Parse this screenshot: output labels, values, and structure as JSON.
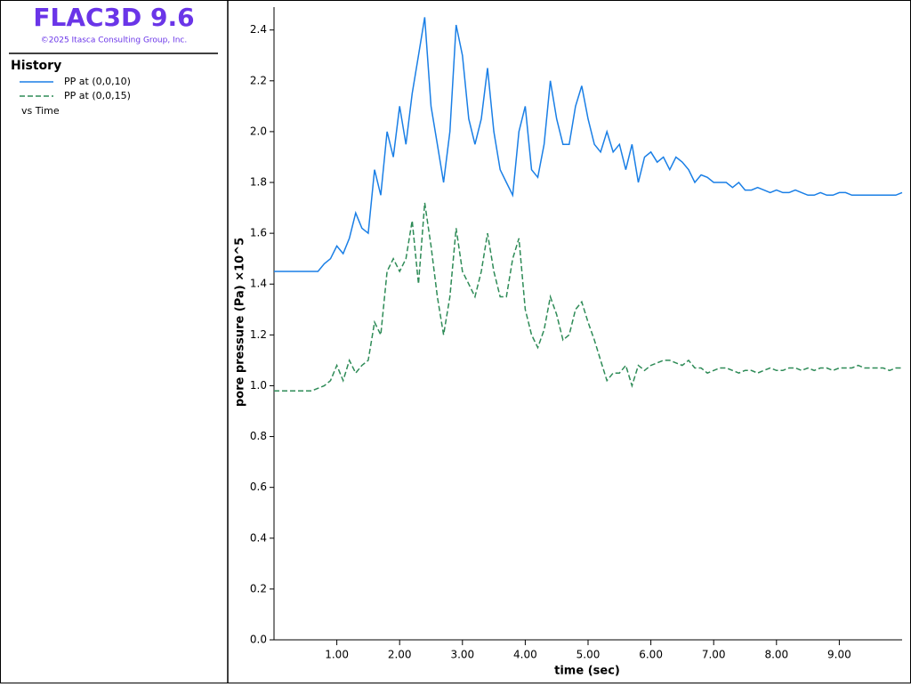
{
  "chart_data": {
    "type": "line",
    "app_title": "FLAC3D 9.6",
    "copyright": "©2025 Itasca Consulting Group, Inc.",
    "panel_title": "History",
    "legend_suffix": "vs Time",
    "xlabel": "time (sec)",
    "ylabel": "pore pressure (Pa) ×10^5",
    "xlim": [
      0,
      10
    ],
    "ylim": [
      0,
      2.49
    ],
    "xticks": [
      {
        "value": 1,
        "label": "1.00"
      },
      {
        "value": 2,
        "label": "2.00"
      },
      {
        "value": 3,
        "label": "3.00"
      },
      {
        "value": 4,
        "label": "4.00"
      },
      {
        "value": 5,
        "label": "5.00"
      },
      {
        "value": 6,
        "label": "6.00"
      },
      {
        "value": 7,
        "label": "7.00"
      },
      {
        "value": 8,
        "label": "8.00"
      },
      {
        "value": 9,
        "label": "9.00"
      }
    ],
    "yticks": [
      {
        "value": 0,
        "label": "0.0"
      },
      0.2,
      0.4,
      0.6,
      0.8,
      {
        "value": 1,
        "label": "1.0"
      },
      1.2,
      1.4,
      1.6,
      1.8,
      {
        "value": 2,
        "label": "2.0"
      },
      2.2,
      2.4
    ],
    "x": [
      0,
      0.5,
      0.6,
      0.7,
      0.8,
      0.9,
      1.0,
      1.1,
      1.2,
      1.3,
      1.4,
      1.5,
      1.6,
      1.7,
      1.8,
      1.9,
      2.0,
      2.1,
      2.2,
      2.3,
      2.4,
      2.5,
      2.6,
      2.7,
      2.8,
      2.9,
      3.0,
      3.1,
      3.2,
      3.3,
      3.4,
      3.5,
      3.6,
      3.7,
      3.8,
      3.9,
      4.0,
      4.1,
      4.2,
      4.3,
      4.4,
      4.5,
      4.6,
      4.7,
      4.8,
      4.9,
      5.0,
      5.1,
      5.2,
      5.3,
      5.4,
      5.5,
      5.6,
      5.7,
      5.8,
      5.9,
      6.0,
      6.1,
      6.2,
      6.3,
      6.4,
      6.5,
      6.6,
      6.7,
      6.8,
      6.9,
      7.0,
      7.1,
      7.2,
      7.3,
      7.4,
      7.5,
      7.6,
      7.7,
      7.8,
      7.9,
      8.0,
      8.1,
      8.2,
      8.3,
      8.4,
      8.5,
      8.6,
      8.7,
      8.8,
      8.9,
      9.0,
      9.1,
      9.2,
      9.3,
      9.4,
      9.5,
      9.6,
      9.7,
      9.8,
      9.9,
      10.0
    ],
    "series": [
      {
        "name": "PP at (0,0,10)",
        "color": "#1a7fe6",
        "style": "solid",
        "values": [
          1.45,
          1.45,
          1.45,
          1.45,
          1.48,
          1.5,
          1.55,
          1.52,
          1.58,
          1.68,
          1.62,
          1.6,
          1.85,
          1.75,
          2.0,
          1.9,
          2.1,
          1.95,
          2.15,
          2.3,
          2.45,
          2.1,
          1.95,
          1.8,
          2.0,
          2.42,
          2.3,
          2.05,
          1.95,
          2.05,
          2.25,
          2.0,
          1.85,
          1.8,
          1.75,
          2.0,
          2.1,
          1.85,
          1.82,
          1.95,
          2.2,
          2.05,
          1.95,
          1.95,
          2.1,
          2.18,
          2.05,
          1.95,
          1.92,
          2.0,
          1.92,
          1.95,
          1.85,
          1.95,
          1.8,
          1.9,
          1.92,
          1.88,
          1.9,
          1.85,
          1.9,
          1.88,
          1.85,
          1.8,
          1.83,
          1.82,
          1.8,
          1.8,
          1.8,
          1.78,
          1.8,
          1.77,
          1.77,
          1.78,
          1.77,
          1.76,
          1.77,
          1.76,
          1.76,
          1.77,
          1.76,
          1.75,
          1.75,
          1.76,
          1.75,
          1.75,
          1.76,
          1.76,
          1.75,
          1.75,
          1.75,
          1.75,
          1.75,
          1.75,
          1.75,
          1.75,
          1.76
        ]
      },
      {
        "name": "PP at (0,0,15)",
        "color": "#2e8b57",
        "style": "dashed",
        "values": [
          0.98,
          0.98,
          0.98,
          0.99,
          1.0,
          1.02,
          1.08,
          1.02,
          1.1,
          1.05,
          1.08,
          1.1,
          1.25,
          1.2,
          1.45,
          1.5,
          1.45,
          1.5,
          1.65,
          1.4,
          1.72,
          1.55,
          1.35,
          1.2,
          1.35,
          1.62,
          1.45,
          1.4,
          1.35,
          1.45,
          1.6,
          1.45,
          1.35,
          1.35,
          1.5,
          1.58,
          1.3,
          1.2,
          1.15,
          1.22,
          1.35,
          1.28,
          1.18,
          1.2,
          1.3,
          1.33,
          1.25,
          1.18,
          1.1,
          1.02,
          1.05,
          1.05,
          1.08,
          1.0,
          1.08,
          1.06,
          1.08,
          1.09,
          1.1,
          1.1,
          1.09,
          1.08,
          1.1,
          1.07,
          1.07,
          1.05,
          1.06,
          1.07,
          1.07,
          1.06,
          1.05,
          1.06,
          1.06,
          1.05,
          1.06,
          1.07,
          1.06,
          1.06,
          1.07,
          1.07,
          1.06,
          1.07,
          1.06,
          1.07,
          1.07,
          1.06,
          1.07,
          1.07,
          1.07,
          1.08,
          1.07,
          1.07,
          1.07,
          1.07,
          1.06,
          1.07,
          1.07
        ]
      }
    ]
  }
}
